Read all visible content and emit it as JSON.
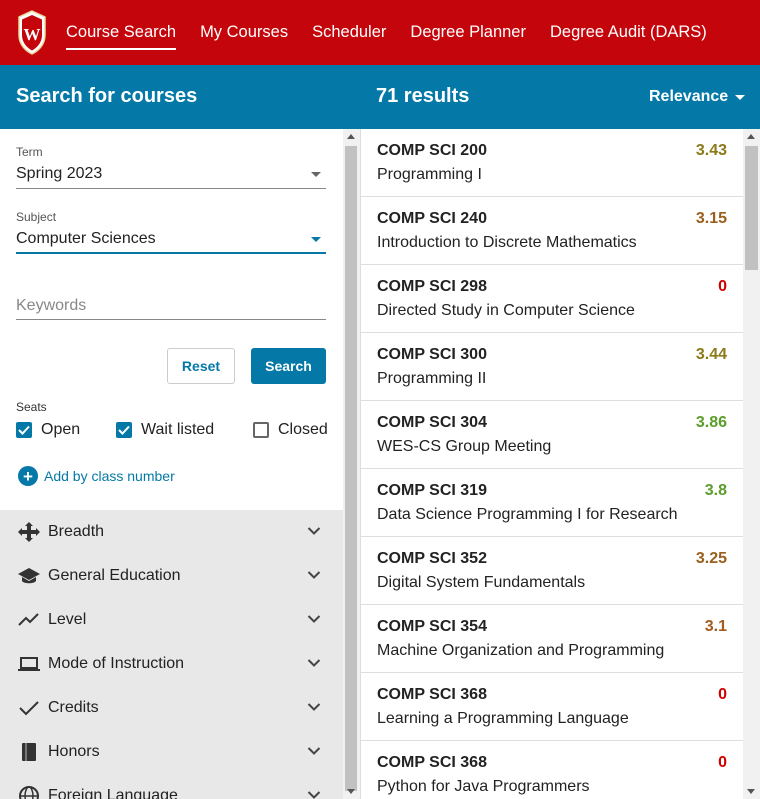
{
  "nav": {
    "links": [
      "Course Search",
      "My Courses",
      "Scheduler",
      "Degree Planner",
      "Degree Audit (DARS)"
    ]
  },
  "header": {
    "left_title": "Search for courses",
    "results": "71 results",
    "sort": "Relevance"
  },
  "form": {
    "term_label": "Term",
    "term_value": "Spring 2023",
    "subject_label": "Subject",
    "subject_value": "Computer Sciences",
    "keywords_placeholder": "Keywords",
    "reset": "Reset",
    "search": "Search",
    "seats_label": "Seats",
    "seats": [
      {
        "label": "Open",
        "checked": true
      },
      {
        "label": "Wait listed",
        "checked": true
      },
      {
        "label": "Closed",
        "checked": false
      }
    ],
    "add_by_class": "Add by class number"
  },
  "filters": [
    "Breadth",
    "General Education",
    "Level",
    "Mode of Instruction",
    "Credits",
    "Honors",
    "Foreign Language"
  ],
  "colors": {
    "brand_red": "#c5050c",
    "brand_blue": "#0479a8",
    "gpa_high": "#5b9e2a",
    "gpa_mid": "#8b7a1a",
    "gpa_low": "#a35b1e",
    "gpa_zero": "#d00000"
  },
  "results": [
    {
      "code": "COMP SCI 200",
      "title": "Programming I",
      "gpa": "3.43",
      "color": "#8b7a1a"
    },
    {
      "code": "COMP SCI 240",
      "title": "Introduction to Discrete Mathematics",
      "gpa": "3.15",
      "color": "#9a5f1c"
    },
    {
      "code": "COMP SCI 298",
      "title": "Directed Study in Computer Science",
      "gpa": "0",
      "color": "#d00000"
    },
    {
      "code": "COMP SCI 300",
      "title": "Programming II",
      "gpa": "3.44",
      "color": "#8b7a1a"
    },
    {
      "code": "COMP SCI 304",
      "title": "WES-CS Group Meeting",
      "gpa": "3.86",
      "color": "#5b9e2a"
    },
    {
      "code": "COMP SCI 319",
      "title": "Data Science Programming I for Research",
      "gpa": "3.8",
      "color": "#5b9e2a"
    },
    {
      "code": "COMP SCI 352",
      "title": "Digital System Fundamentals",
      "gpa": "3.25",
      "color": "#9a5f1c"
    },
    {
      "code": "COMP SCI 354",
      "title": "Machine Organization and Programming",
      "gpa": "3.1",
      "color": "#a35b1e"
    },
    {
      "code": "COMP SCI 368",
      "title": "Learning a Programming Language",
      "gpa": "0",
      "color": "#d00000"
    },
    {
      "code": "COMP SCI 368",
      "title": "Python for Java Programmers",
      "gpa": "0",
      "color": "#d00000"
    }
  ]
}
